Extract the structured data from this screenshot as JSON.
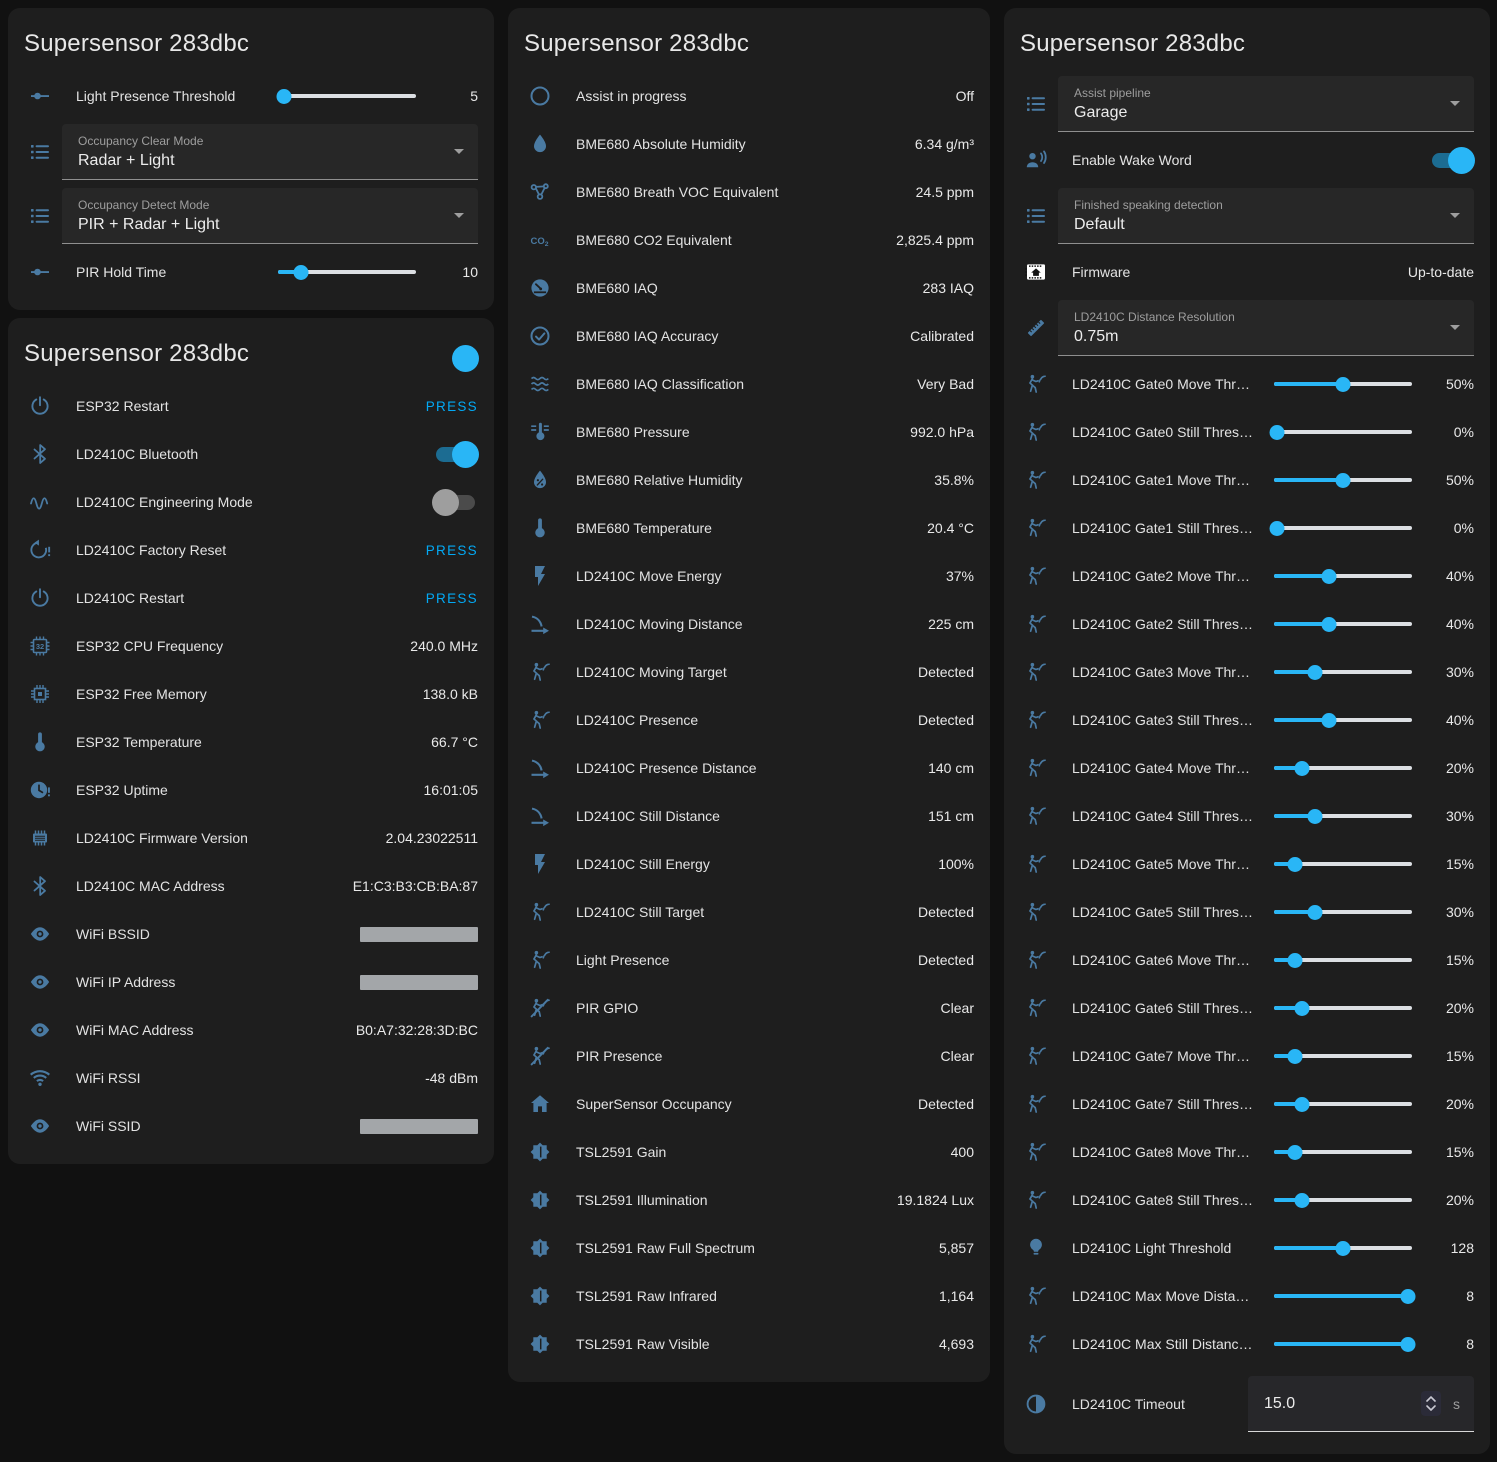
{
  "colors": {
    "page_bg": "#111111",
    "card_bg": "#1e1e1e",
    "accent_blue": "#29b6f6",
    "press_blue": "#03a9f4",
    "icon_blue": "#4a7aa2",
    "slider_inactive": "#dcdfe3",
    "toggle_on_track": "#1c6c92",
    "toggle_off_track": "#4b4b4b",
    "toggle_off_knob": "#9e9e9e",
    "redacted_grey": "#a3a6a9"
  },
  "cards": [
    {
      "id": "controls",
      "title": "Supersensor 283dbc",
      "rows": [
        {
          "type": "slider",
          "icon": "tune-icon",
          "label": "Light Presence Threshold",
          "value": "5",
          "percent": 4
        },
        {
          "type": "select",
          "icon": "list-icon",
          "label": "Occupancy Clear Mode",
          "value": "Radar + Light"
        },
        {
          "type": "select",
          "icon": "list-icon",
          "label": "Occupancy Detect Mode",
          "value": "PIR + Radar + Light"
        },
        {
          "type": "slider",
          "icon": "tune-icon",
          "label": "PIR Hold Time",
          "value": "10",
          "percent": 17
        }
      ]
    },
    {
      "id": "diagnostic",
      "title": "Supersensor 283dbc",
      "header_toggle": "on",
      "rows": [
        {
          "type": "press",
          "icon": "power-icon",
          "label": "ESP32 Restart",
          "action": "PRESS"
        },
        {
          "type": "toggle",
          "icon": "bluetooth-icon",
          "label": "LD2410C Bluetooth",
          "state": "on"
        },
        {
          "type": "toggle",
          "icon": "sine-wave-icon",
          "label": "LD2410C Engineering Mode",
          "state": "off"
        },
        {
          "type": "press",
          "icon": "restart-alert-icon",
          "label": "LD2410C Factory Reset",
          "action": "PRESS"
        },
        {
          "type": "press",
          "icon": "power-icon",
          "label": "LD2410C Restart",
          "action": "PRESS"
        },
        {
          "type": "sensor",
          "icon": "chip-32-icon",
          "label": "ESP32 CPU Frequency",
          "value": "240.0 MHz"
        },
        {
          "type": "sensor",
          "icon": "memory-icon",
          "label": "ESP32 Free Memory",
          "value": "138.0 kB"
        },
        {
          "type": "sensor",
          "icon": "thermometer-icon",
          "label": "ESP32 Temperature",
          "value": "66.7 °C"
        },
        {
          "type": "sensor",
          "icon": "clock-alert-icon",
          "label": "ESP32 Uptime",
          "value": "16:01:05"
        },
        {
          "type": "sensor",
          "icon": "chip-icon",
          "label": "LD2410C Firmware Version",
          "value": "2.04.23022511"
        },
        {
          "type": "sensor",
          "icon": "bluetooth-icon",
          "label": "LD2410C MAC Address",
          "value": "E1:C3:B3:CB:BA:87"
        },
        {
          "type": "redacted",
          "icon": "eye-icon",
          "label": "WiFi BSSID"
        },
        {
          "type": "redacted",
          "icon": "eye-icon",
          "label": "WiFi IP Address"
        },
        {
          "type": "sensor",
          "icon": "eye-icon",
          "label": "WiFi MAC Address",
          "value": "B0:A7:32:28:3D:BC"
        },
        {
          "type": "sensor",
          "icon": "wifi-icon",
          "label": "WiFi RSSI",
          "value": "-48 dBm"
        },
        {
          "type": "redacted",
          "icon": "eye-icon",
          "label": "WiFi SSID"
        }
      ]
    },
    {
      "id": "sensors",
      "title": "Supersensor 283dbc",
      "rows": [
        {
          "type": "sensor",
          "icon": "circle-outline-icon",
          "label": "Assist in progress",
          "value": "Off"
        },
        {
          "type": "sensor",
          "icon": "water-drop-icon",
          "label": "BME680 Absolute Humidity",
          "value": "6.34 g/m³"
        },
        {
          "type": "sensor",
          "icon": "molecule-icon",
          "label": "BME680 Breath VOC Equivalent",
          "value": "24.5 ppm"
        },
        {
          "type": "sensor",
          "icon": "co2-icon",
          "label": "BME680 CO2 Equivalent",
          "value": "2,825.4 ppm"
        },
        {
          "type": "sensor",
          "icon": "gauge-icon",
          "label": "BME680 IAQ",
          "value": "283 IAQ"
        },
        {
          "type": "sensor",
          "icon": "check-circle-icon",
          "label": "BME680 IAQ Accuracy",
          "value": "Calibrated"
        },
        {
          "type": "sensor",
          "icon": "air-filter-icon",
          "label": "BME680 IAQ Classification",
          "value": "Very Bad"
        },
        {
          "type": "sensor",
          "icon": "thermometer-lines-icon",
          "label": "BME680 Pressure",
          "value": "992.0 hPa"
        },
        {
          "type": "sensor",
          "icon": "water-percent-icon",
          "label": "BME680 Relative Humidity",
          "value": "35.8%"
        },
        {
          "type": "sensor",
          "icon": "thermometer-icon",
          "label": "BME680 Temperature",
          "value": "20.4 °C"
        },
        {
          "type": "sensor",
          "icon": "flash-icon",
          "label": "LD2410C Move Energy",
          "value": "37%"
        },
        {
          "type": "sensor",
          "icon": "signal-distance-icon",
          "label": "LD2410C Moving Distance",
          "value": "225 cm"
        },
        {
          "type": "sensor",
          "icon": "motion-sensor-icon",
          "label": "LD2410C Moving Target",
          "value": "Detected"
        },
        {
          "type": "sensor",
          "icon": "motion-sensor-icon",
          "label": "LD2410C Presence",
          "value": "Detected"
        },
        {
          "type": "sensor",
          "icon": "signal-distance-icon",
          "label": "LD2410C Presence Distance",
          "value": "140 cm"
        },
        {
          "type": "sensor",
          "icon": "signal-distance-icon",
          "label": "LD2410C Still Distance",
          "value": "151 cm"
        },
        {
          "type": "sensor",
          "icon": "flash-icon",
          "label": "LD2410C Still Energy",
          "value": "100%"
        },
        {
          "type": "sensor",
          "icon": "motion-sensor-icon",
          "label": "LD2410C Still Target",
          "value": "Detected"
        },
        {
          "type": "sensor",
          "icon": "motion-sensor-icon",
          "label": "Light Presence",
          "value": "Detected"
        },
        {
          "type": "sensor",
          "icon": "motion-sensor-off-icon",
          "label": "PIR GPIO",
          "value": "Clear"
        },
        {
          "type": "sensor",
          "icon": "motion-sensor-off-icon",
          "label": "PIR Presence",
          "value": "Clear"
        },
        {
          "type": "sensor",
          "icon": "home-icon",
          "label": "SuperSensor Occupancy",
          "value": "Detected"
        },
        {
          "type": "sensor",
          "icon": "brightness-icon",
          "label": "TSL2591 Gain",
          "value": "400"
        },
        {
          "type": "sensor",
          "icon": "brightness-icon",
          "label": "TSL2591 Illumination",
          "value": "19.1824 Lux"
        },
        {
          "type": "sensor",
          "icon": "brightness-icon",
          "label": "TSL2591 Raw Full Spectrum",
          "value": "5,857"
        },
        {
          "type": "sensor",
          "icon": "brightness-icon",
          "label": "TSL2591 Raw Infrared",
          "value": "1,164"
        },
        {
          "type": "sensor",
          "icon": "brightness-icon",
          "label": "TSL2591 Raw Visible",
          "value": "4,693"
        }
      ]
    },
    {
      "id": "configuration",
      "title": "Supersensor 283dbc",
      "rows": [
        {
          "type": "select",
          "icon": "list-icon",
          "label": "Assist pipeline",
          "value": "Garage"
        },
        {
          "type": "toggle",
          "icon": "account-voice-icon",
          "label": "Enable Wake Word",
          "state": "on"
        },
        {
          "type": "select",
          "icon": "list-icon",
          "label": "Finished speaking detection",
          "value": "Default"
        },
        {
          "type": "sensor",
          "icon": "firmware-icon",
          "label": "Firmware",
          "value": "Up-to-date"
        },
        {
          "type": "select",
          "icon": "ruler-icon",
          "label": "LD2410C Distance Resolution",
          "value": "0.75m"
        },
        {
          "type": "slider",
          "icon": "motion-sensor-icon",
          "label": "LD2410C Gate0 Move Thr…",
          "value": "50%",
          "percent": 50
        },
        {
          "type": "slider",
          "icon": "motion-sensor-icon",
          "label": "LD2410C Gate0 Still Thres…",
          "value": "0%",
          "percent": 2
        },
        {
          "type": "slider",
          "icon": "motion-sensor-icon",
          "label": "LD2410C Gate1 Move Thr…",
          "value": "50%",
          "percent": 50
        },
        {
          "type": "slider",
          "icon": "motion-sensor-icon",
          "label": "LD2410C Gate1 Still Thres…",
          "value": "0%",
          "percent": 2
        },
        {
          "type": "slider",
          "icon": "motion-sensor-icon",
          "label": "LD2410C Gate2 Move Thr…",
          "value": "40%",
          "percent": 40
        },
        {
          "type": "slider",
          "icon": "motion-sensor-icon",
          "label": "LD2410C Gate2 Still Thres…",
          "value": "40%",
          "percent": 40
        },
        {
          "type": "slider",
          "icon": "motion-sensor-icon",
          "label": "LD2410C Gate3 Move Thr…",
          "value": "30%",
          "percent": 30
        },
        {
          "type": "slider",
          "icon": "motion-sensor-icon",
          "label": "LD2410C Gate3 Still Thres…",
          "value": "40%",
          "percent": 40
        },
        {
          "type": "slider",
          "icon": "motion-sensor-icon",
          "label": "LD2410C Gate4 Move Thr…",
          "value": "20%",
          "percent": 20
        },
        {
          "type": "slider",
          "icon": "motion-sensor-icon",
          "label": "LD2410C Gate4 Still Thres…",
          "value": "30%",
          "percent": 30
        },
        {
          "type": "slider",
          "icon": "motion-sensor-icon",
          "label": "LD2410C Gate5 Move Thr…",
          "value": "15%",
          "percent": 15
        },
        {
          "type": "slider",
          "icon": "motion-sensor-icon",
          "label": "LD2410C Gate5 Still Thres…",
          "value": "30%",
          "percent": 30
        },
        {
          "type": "slider",
          "icon": "motion-sensor-icon",
          "label": "LD2410C Gate6 Move Thr…",
          "value": "15%",
          "percent": 15
        },
        {
          "type": "slider",
          "icon": "motion-sensor-icon",
          "label": "LD2410C Gate6 Still Thres…",
          "value": "20%",
          "percent": 20
        },
        {
          "type": "slider",
          "icon": "motion-sensor-icon",
          "label": "LD2410C Gate7 Move Thr…",
          "value": "15%",
          "percent": 15
        },
        {
          "type": "slider",
          "icon": "motion-sensor-icon",
          "label": "LD2410C Gate7 Still Thres…",
          "value": "20%",
          "percent": 20
        },
        {
          "type": "slider",
          "icon": "motion-sensor-icon",
          "label": "LD2410C Gate8 Move Thr…",
          "value": "15%",
          "percent": 15
        },
        {
          "type": "slider",
          "icon": "motion-sensor-icon",
          "label": "LD2410C Gate8 Still Thres…",
          "value": "20%",
          "percent": 20
        },
        {
          "type": "slider",
          "icon": "lightbulb-icon",
          "label": "LD2410C Light Threshold",
          "value": "128",
          "percent": 50
        },
        {
          "type": "slider",
          "icon": "motion-sensor-icon",
          "label": "LD2410C Max Move Dista…",
          "value": "8",
          "percent": 97
        },
        {
          "type": "slider",
          "icon": "motion-sensor-icon",
          "label": "LD2410C Max Still Distanc…",
          "value": "8",
          "percent": 97
        },
        {
          "type": "number",
          "icon": "timelapse-icon",
          "label": "LD2410C Timeout",
          "value": "15.0",
          "unit": "s"
        }
      ]
    }
  ]
}
